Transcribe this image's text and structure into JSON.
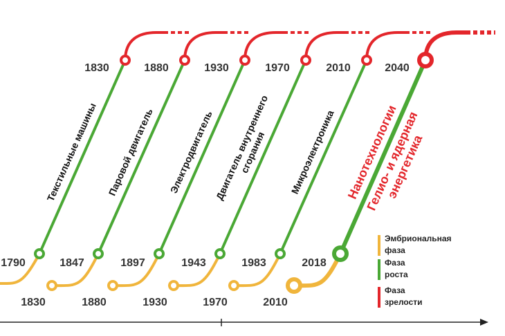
{
  "waves": [
    {
      "start": null,
      "growth": "1790",
      "maturity": "1830",
      "label": [
        "Текстильные машины"
      ]
    },
    {
      "start": "1830",
      "growth": "1847",
      "maturity": "1880",
      "label": [
        "Паровой двигатель"
      ]
    },
    {
      "start": "1880",
      "growth": "1897",
      "maturity": "1930",
      "label": [
        "Электродвигатель"
      ]
    },
    {
      "start": "1930",
      "growth": "1943",
      "maturity": "1970",
      "label": [
        "Двигатель внутреннего",
        "сгорания"
      ]
    },
    {
      "start": "1970",
      "growth": "1983",
      "maturity": "2010",
      "label": [
        "Микроэлектроника"
      ]
    },
    {
      "start": "2010",
      "growth": "2018",
      "maturity": "2040",
      "label": [
        "Нанотехнологии"
      ],
      "label_right": [
        "Гелио- и ядерная",
        "энергетика"
      ]
    }
  ],
  "legend": [
    {
      "lines": [
        "Эмбриональная",
        "фаза"
      ],
      "color": "#f0b53c"
    },
    {
      "lines": [
        "Фаза",
        "роста"
      ],
      "color": "#4aa835"
    },
    {
      "lines": [
        "Фаза",
        "зрелости"
      ],
      "color": "#e3262b"
    }
  ]
}
